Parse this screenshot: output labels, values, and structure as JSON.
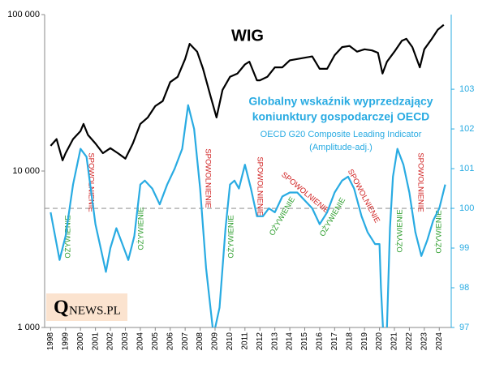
{
  "chart_data": {
    "type": "line",
    "title": [
      "Globalny wskaźnik wyprzedzający",
      "koniunktury gospodarczej OECD"
    ],
    "subtitle": "(Amplitude-adj.)",
    "logo": [
      "Q",
      "NEWS.PL"
    ],
    "xlim": [
      1997.6,
      2024.8
    ],
    "xticks": [
      1998,
      1999,
      2000,
      2001,
      2002,
      2003,
      2004,
      2005,
      2006,
      2007,
      2008,
      2009,
      2010,
      2011,
      2012,
      2013,
      2014,
      2015,
      2016,
      2017,
      2018,
      2019,
      2020,
      2021,
      2022,
      2023,
      2024
    ],
    "ylim": [
      1000,
      100000
    ],
    "ylog": true,
    "yticks": [
      {
        "value": 1000,
        "label": "1 000"
      },
      {
        "value": 10000,
        "label": "10 000"
      },
      {
        "value": 100000,
        "label": "100 000"
      }
    ],
    "y2lim": [
      97,
      104.88
    ],
    "y2ticks": [
      97,
      98,
      99,
      100,
      101,
      102,
      103
    ],
    "reference_line": {
      "axis": "y2",
      "value": 100,
      "color": "#999999"
    },
    "series": [
      {
        "name": "WIG",
        "color": "#000000",
        "x": [
          1998.0,
          1998.4,
          1998.8,
          1999.0,
          1999.5,
          2000.0,
          2000.2,
          2000.5,
          2001.0,
          2001.5,
          2002.0,
          2002.5,
          2003.0,
          2003.5,
          2004.0,
          2004.5,
          2005.0,
          2005.5,
          2006.0,
          2006.5,
          2007.0,
          2007.3,
          2007.8,
          2008.2,
          2008.7,
          2009.1,
          2009.5,
          2010.0,
          2010.5,
          2011.0,
          2011.3,
          2011.8,
          2012.0,
          2012.5,
          2013.0,
          2013.5,
          2014.0,
          2014.5,
          2015.0,
          2015.5,
          2016.0,
          2016.5,
          2017.0,
          2017.5,
          2018.0,
          2018.5,
          2019.0,
          2019.5,
          2019.9,
          2020.2,
          2020.5,
          2021.0,
          2021.5,
          2021.8,
          2022.2,
          2022.7,
          2023.0,
          2023.5,
          2023.9,
          2024.3
        ],
        "values": [
          14500,
          16000,
          11700,
          13000,
          16000,
          18000,
          20000,
          17000,
          15000,
          13000,
          14000,
          13000,
          12000,
          15000,
          20000,
          22000,
          26000,
          28000,
          37000,
          40000,
          52000,
          65000,
          58000,
          45000,
          30000,
          22000,
          33000,
          40000,
          42000,
          48000,
          50000,
          38000,
          38000,
          40000,
          46000,
          46000,
          51000,
          52000,
          53000,
          54000,
          45000,
          45000,
          55000,
          62000,
          63000,
          58000,
          60000,
          59000,
          57000,
          42000,
          50000,
          58000,
          68000,
          70000,
          62000,
          46000,
          60000,
          70000,
          80000,
          86000
        ]
      },
      {
        "name": "OECD G20 Composite Leading Indicator",
        "color": "#29abe2",
        "axis": "y2",
        "x": [
          1998.0,
          1998.6,
          1999.0,
          1999.5,
          2000.0,
          2000.4,
          2001.0,
          2001.7,
          2002.0,
          2002.4,
          2002.8,
          2003.2,
          2003.6,
          2004.0,
          2004.3,
          2004.8,
          2005.3,
          2005.8,
          2006.3,
          2006.8,
          2007.2,
          2007.6,
          2008.0,
          2008.4,
          2008.9,
          2009.3,
          2009.7,
          2010.0,
          2010.3,
          2010.6,
          2011.0,
          2011.4,
          2011.8,
          2012.2,
          2012.6,
          2013.0,
          2013.5,
          2014.0,
          2014.5,
          2015.0,
          2015.5,
          2016.0,
          2016.5,
          2017.0,
          2017.5,
          2017.9,
          2018.3,
          2018.8,
          2019.2,
          2019.7,
          2020.0,
          2020.1,
          2020.3,
          2020.5,
          2020.7,
          2020.9,
          2021.2,
          2021.6,
          2022.0,
          2022.4,
          2022.8,
          2023.2,
          2023.6,
          2024.0,
          2024.4
        ],
        "values": [
          99.9,
          98.7,
          99.3,
          100.6,
          101.5,
          101.3,
          99.6,
          98.4,
          99.0,
          99.5,
          99.1,
          98.7,
          99.3,
          100.6,
          100.7,
          100.5,
          100.1,
          100.6,
          101.0,
          101.5,
          102.6,
          102.0,
          100.5,
          98.5,
          96.8,
          97.5,
          99.5,
          100.6,
          100.7,
          100.5,
          101.1,
          100.5,
          99.8,
          99.8,
          100.0,
          99.9,
          100.3,
          100.4,
          100.4,
          100.2,
          100.0,
          99.6,
          99.9,
          100.4,
          100.7,
          100.8,
          100.5,
          99.8,
          99.4,
          99.1,
          99.1,
          98.0,
          96.5,
          97.0,
          99.5,
          100.8,
          101.5,
          101.1,
          100.4,
          99.4,
          98.8,
          99.2,
          99.7,
          100.0,
          100.6
        ]
      }
    ],
    "annotations": [
      {
        "text": "OŻYWIENIE",
        "color": "#2e9e2e"
      },
      {
        "text": "SPOWOLNIENIE",
        "color": "#d02020"
      },
      {
        "text": "OŻYWIENIE",
        "color": "#2e9e2e"
      },
      {
        "text": "SPOWOLNIENIE",
        "color": "#d02020"
      },
      {
        "text": "OŻYWIENIE",
        "color": "#2e9e2e"
      },
      {
        "text": "SPOWOLNIENIE",
        "color": "#d02020"
      },
      {
        "text": "OŻYWIENIE",
        "color": "#2e9e2e"
      },
      {
        "text": "SPOWOLNIENIE",
        "color": "#d02020"
      },
      {
        "text": "OŻYWIENIE",
        "color": "#2e9e2e"
      },
      {
        "text": "SPOWOLNIENIE",
        "color": "#d02020"
      },
      {
        "text": "OŻYWIENIE",
        "color": "#2e9e2e"
      },
      {
        "text": "SPOWOLNIENIE",
        "color": "#d02020"
      },
      {
        "text": "OŻYWIENIE",
        "color": "#2e9e2e"
      }
    ]
  }
}
